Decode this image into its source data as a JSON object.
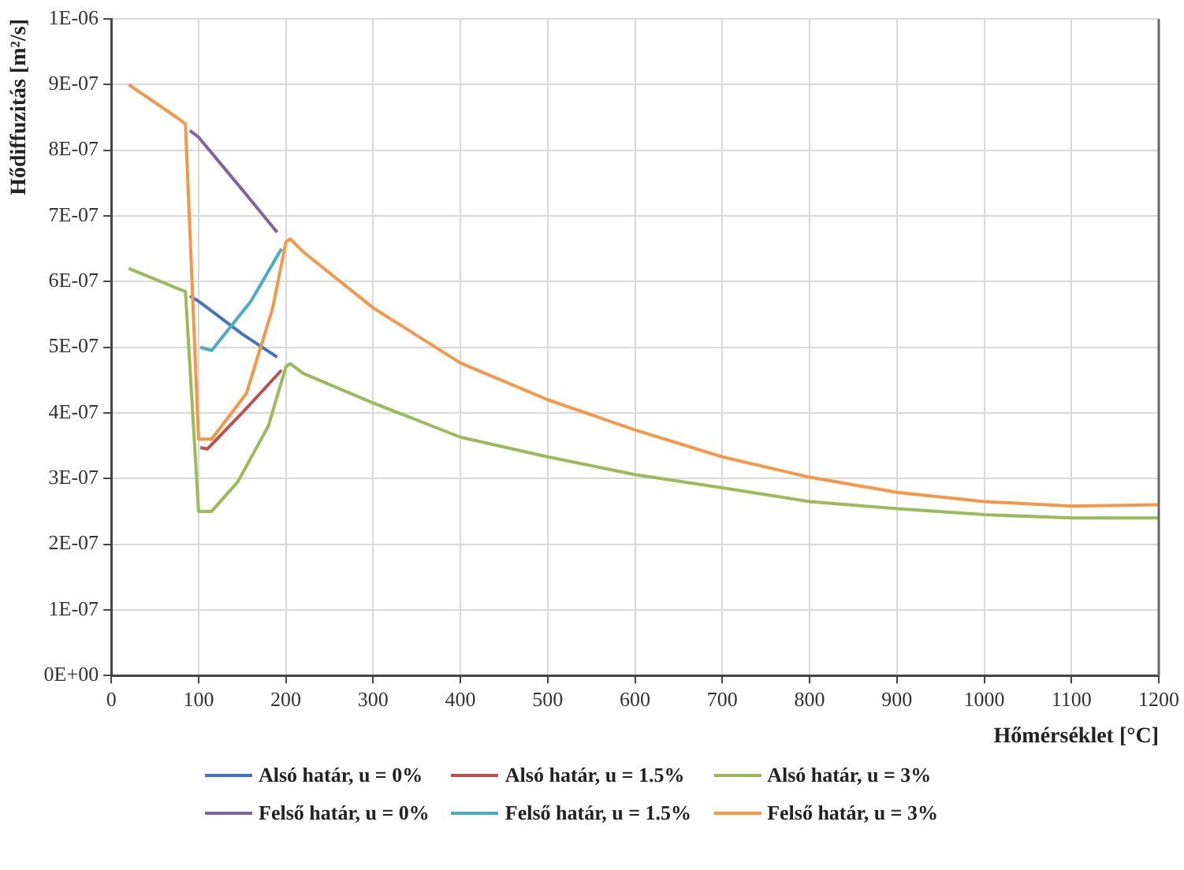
{
  "chart_data": {
    "type": "line",
    "xlabel": "Hőmérséklet [°C]",
    "ylabel": "Hődiffuzitás [m²/s]",
    "xlim": [
      0,
      1200
    ],
    "xticks": [
      0,
      100,
      200,
      300,
      400,
      500,
      600,
      700,
      800,
      900,
      1000,
      1100,
      1200
    ],
    "ylim": [
      0,
      1e-06
    ],
    "yticks": [
      {
        "value": 0,
        "label": "0E+00"
      },
      {
        "value": 1e-07,
        "label": "1E-07"
      },
      {
        "value": 2e-07,
        "label": "2E-07"
      },
      {
        "value": 3e-07,
        "label": "3E-07"
      },
      {
        "value": 4e-07,
        "label": "4E-07"
      },
      {
        "value": 5e-07,
        "label": "5E-07"
      },
      {
        "value": 6e-07,
        "label": "6E-07"
      },
      {
        "value": 7e-07,
        "label": "7E-07"
      },
      {
        "value": 8e-07,
        "label": "8E-07"
      },
      {
        "value": 9e-07,
        "label": "9E-07"
      },
      {
        "value": 1e-06,
        "label": "1E-06"
      }
    ],
    "grid": true,
    "legend": "bottom",
    "marker": "none",
    "line_style": "solid",
    "series": [
      {
        "name": "Alsó határ, u = 0%",
        "color": "#4472c4",
        "x": [
          90,
          100,
          150,
          190
        ],
        "values": [
          5.78e-07,
          5.7e-07,
          5.2e-07,
          4.85e-07
        ]
      },
      {
        "name": "Alsó határ, u = 1.5%",
        "color": "#c0504d",
        "x": [
          102,
          110,
          150,
          195
        ],
        "values": [
          3.47e-07,
          3.45e-07,
          4e-07,
          4.65e-07
        ]
      },
      {
        "name": "Alsó határ, u = 3%",
        "color": "#9bbb59",
        "x": [
          20,
          75,
          85,
          100,
          115,
          145,
          180,
          200,
          205,
          220,
          300,
          400,
          500,
          600,
          700,
          800,
          900,
          1000,
          1100,
          1200
        ],
        "values": [
          6.2e-07,
          5.9e-07,
          5.85e-07,
          2.5e-07,
          2.5e-07,
          2.95e-07,
          3.8e-07,
          4.7e-07,
          4.75e-07,
          4.6e-07,
          4.15e-07,
          3.63e-07,
          3.33e-07,
          3.06e-07,
          2.86e-07,
          2.65e-07,
          2.54e-07,
          2.45e-07,
          2.4e-07,
          2.4e-07
        ]
      },
      {
        "name": "Felső határ, u = 0%",
        "color": "#8064a2",
        "x": [
          90,
          100,
          150,
          190
        ],
        "values": [
          8.3e-07,
          8.2e-07,
          7.4e-07,
          6.75e-07
        ]
      },
      {
        "name": "Felső határ, u = 1.5%",
        "color": "#4bacc6",
        "x": [
          102,
          115,
          160,
          195
        ],
        "values": [
          5e-07,
          4.95e-07,
          5.7e-07,
          6.5e-07
        ]
      },
      {
        "name": "Felső határ, u = 3%",
        "color": "#f79646",
        "x": [
          20,
          75,
          85,
          100,
          115,
          155,
          185,
          200,
          205,
          220,
          300,
          400,
          500,
          600,
          700,
          800,
          900,
          1000,
          1100,
          1200
        ],
        "values": [
          9e-07,
          8.5e-07,
          8.4e-07,
          3.6e-07,
          3.6e-07,
          4.3e-07,
          5.6e-07,
          6.6e-07,
          6.65e-07,
          6.45e-07,
          5.6e-07,
          4.76e-07,
          4.2e-07,
          3.74e-07,
          3.33e-07,
          3.02e-07,
          2.79e-07,
          2.65e-07,
          2.58e-07,
          2.6e-07
        ]
      }
    ]
  }
}
